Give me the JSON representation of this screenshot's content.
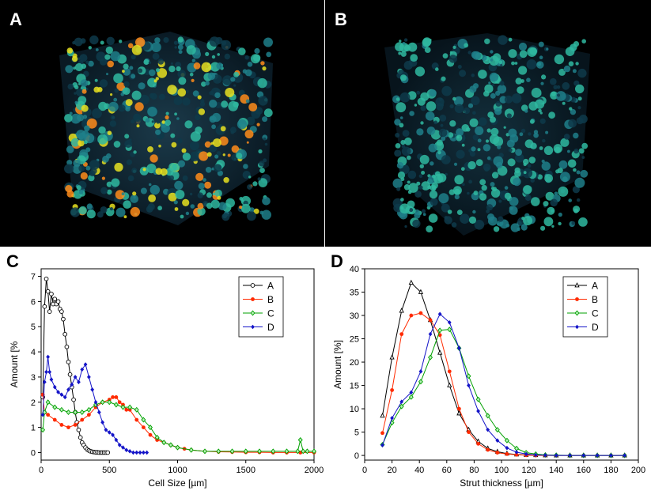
{
  "panels": [
    {
      "label": "A"
    },
    {
      "label": "B"
    },
    {
      "label": "C"
    },
    {
      "label": "D"
    }
  ],
  "colors": {
    "A": "#000000",
    "B": "#ff2a00",
    "C": "#00a000",
    "D": "#1414c8"
  },
  "chart_data": [
    {
      "panel": "C",
      "type": "line",
      "xlabel": "Cell Size [µm]",
      "ylabel": "Amount [%",
      "xlim": [
        0,
        2000
      ],
      "ylim": [
        -0.3,
        7.3
      ],
      "xticks": [
        0,
        500,
        1000,
        1500,
        2000
      ],
      "yticks": [
        0,
        1,
        2,
        3,
        4,
        5,
        6,
        7
      ],
      "legend_position": "top-right",
      "series": [
        {
          "name": "A",
          "marker": "open-circle",
          "x": [
            12,
            25,
            38,
            50,
            62,
            75,
            88,
            100,
            112,
            125,
            138,
            150,
            162,
            175,
            188,
            200,
            212,
            225,
            238,
            250,
            262,
            275,
            288,
            300,
            312,
            325,
            338,
            350,
            362,
            375,
            388,
            400,
            412,
            425,
            438,
            450,
            462,
            475,
            488
          ],
          "y": [
            2.2,
            5.8,
            6.9,
            6.4,
            5.6,
            6.3,
            5.9,
            6.1,
            5.9,
            6.0,
            5.7,
            5.6,
            5.3,
            4.7,
            4.2,
            3.6,
            3.1,
            2.6,
            2.1,
            1.6,
            1.2,
            0.9,
            0.6,
            0.4,
            0.3,
            0.2,
            0.12,
            0.08,
            0.05,
            0.03,
            0.02,
            0.01,
            0.01,
            0.0,
            0.0,
            0.0,
            0.0,
            0.0,
            0.0
          ]
        },
        {
          "name": "B",
          "marker": "filled-circle",
          "x": [
            12,
            25,
            50,
            100,
            150,
            200,
            250,
            300,
            350,
            400,
            450,
            500,
            525,
            550,
            575,
            600,
            625,
            650,
            700,
            750,
            800,
            850,
            900,
            950,
            1000,
            1050,
            1100,
            1200,
            1300,
            1400,
            1500,
            1600,
            1700,
            1800,
            1900,
            2000
          ],
          "y": [
            2.3,
            1.6,
            1.5,
            1.3,
            1.1,
            1.0,
            1.1,
            1.3,
            1.5,
            1.8,
            2.0,
            2.1,
            2.2,
            2.2,
            2.0,
            1.9,
            1.7,
            1.7,
            1.3,
            1.0,
            0.7,
            0.5,
            0.4,
            0.3,
            0.2,
            0.15,
            0.1,
            0.05,
            0.03,
            0.02,
            0.01,
            0.01,
            0.0,
            0.0,
            0.0,
            0.0
          ]
        },
        {
          "name": "C",
          "marker": "diamond",
          "x": [
            12,
            25,
            50,
            100,
            150,
            200,
            250,
            300,
            350,
            400,
            450,
            500,
            550,
            600,
            650,
            700,
            750,
            800,
            850,
            900,
            950,
            1000,
            1100,
            1200,
            1300,
            1400,
            1500,
            1600,
            1700,
            1800,
            1880,
            1900,
            1920,
            1950,
            2000
          ],
          "y": [
            0.9,
            1.6,
            2.0,
            1.8,
            1.7,
            1.6,
            1.6,
            1.6,
            1.7,
            1.9,
            2.0,
            2.0,
            1.9,
            1.8,
            1.8,
            1.7,
            1.3,
            1.0,
            0.6,
            0.4,
            0.3,
            0.2,
            0.1,
            0.05,
            0.05,
            0.05,
            0.05,
            0.05,
            0.05,
            0.05,
            0.05,
            0.5,
            0.05,
            0.05,
            0.05
          ]
        },
        {
          "name": "D",
          "marker": "filled-diamond",
          "x": [
            12,
            25,
            38,
            50,
            62,
            75,
            100,
            125,
            150,
            175,
            200,
            225,
            250,
            275,
            300,
            325,
            350,
            375,
            400,
            425,
            450,
            475,
            500,
            525,
            550,
            575,
            600,
            625,
            650,
            675,
            700,
            725,
            750,
            775
          ],
          "y": [
            1.5,
            2.8,
            3.2,
            3.8,
            3.2,
            2.9,
            2.6,
            2.4,
            2.3,
            2.2,
            2.5,
            2.7,
            3.0,
            2.8,
            3.3,
            3.5,
            3.0,
            2.5,
            2.0,
            1.6,
            1.2,
            0.9,
            0.8,
            0.7,
            0.5,
            0.3,
            0.2,
            0.1,
            0.05,
            0.0,
            0.0,
            0.0,
            0.0,
            0.0
          ]
        }
      ]
    },
    {
      "panel": "D",
      "type": "line",
      "xlabel": "Strut thickness [µm]",
      "ylabel": "Amount [%]",
      "xlim": [
        0,
        200
      ],
      "ylim": [
        -1,
        40
      ],
      "xticks": [
        0,
        20,
        40,
        60,
        80,
        100,
        120,
        140,
        160,
        180,
        200
      ],
      "yticks": [
        0,
        5,
        10,
        15,
        20,
        25,
        30,
        35,
        40
      ],
      "legend_position": "top-right",
      "series": [
        {
          "name": "A",
          "marker": "open-triangle",
          "x": [
            13,
            20,
            27,
            34,
            41,
            48,
            55,
            62,
            69,
            76,
            83,
            90,
            97,
            104,
            111,
            118,
            125,
            132,
            140,
            150,
            160,
            170,
            180,
            190
          ],
          "y": [
            8.5,
            21,
            31,
            37,
            35,
            29,
            22,
            15,
            9,
            5.5,
            3,
            1.5,
            0.8,
            0.4,
            0.2,
            0.1,
            0.05,
            0.02,
            0,
            0,
            0,
            0,
            0,
            0
          ]
        },
        {
          "name": "B",
          "marker": "filled-circle",
          "x": [
            13,
            20,
            27,
            34,
            41,
            48,
            55,
            62,
            69,
            76,
            83,
            90,
            97,
            104,
            111,
            118,
            125,
            132,
            140,
            150,
            160,
            170,
            180,
            190
          ],
          "y": [
            4.8,
            14,
            26,
            30,
            30.5,
            29,
            25.8,
            18,
            10,
            5,
            2.5,
            1.2,
            0.6,
            0.3,
            0.15,
            0.05,
            0,
            0,
            0,
            0,
            0,
            0,
            0,
            0
          ]
        },
        {
          "name": "C",
          "marker": "diamond",
          "x": [
            13,
            20,
            27,
            34,
            41,
            48,
            55,
            62,
            69,
            76,
            83,
            90,
            97,
            104,
            111,
            118,
            125,
            132,
            140,
            150,
            160,
            170,
            180,
            190
          ],
          "y": [
            2.3,
            7,
            10.5,
            12.5,
            15.8,
            21,
            26.8,
            27,
            23,
            17,
            12,
            8.5,
            5.5,
            3.2,
            1.5,
            0.6,
            0.3,
            0.1,
            0.05,
            0,
            0,
            0,
            0,
            0
          ]
        },
        {
          "name": "D",
          "marker": "filled-diamond",
          "x": [
            13,
            20,
            27,
            34,
            41,
            48,
            55,
            62,
            69,
            76,
            83,
            90,
            97,
            104,
            111,
            118,
            125,
            132,
            140,
            150,
            160,
            170,
            180,
            190
          ],
          "y": [
            2.2,
            8,
            11.5,
            13.5,
            18,
            26,
            30.3,
            28.5,
            23,
            15,
            9.5,
            5.5,
            3.2,
            1.6,
            0.7,
            0.3,
            0.1,
            0.05,
            0,
            0,
            0,
            0,
            0,
            0
          ]
        }
      ]
    }
  ]
}
